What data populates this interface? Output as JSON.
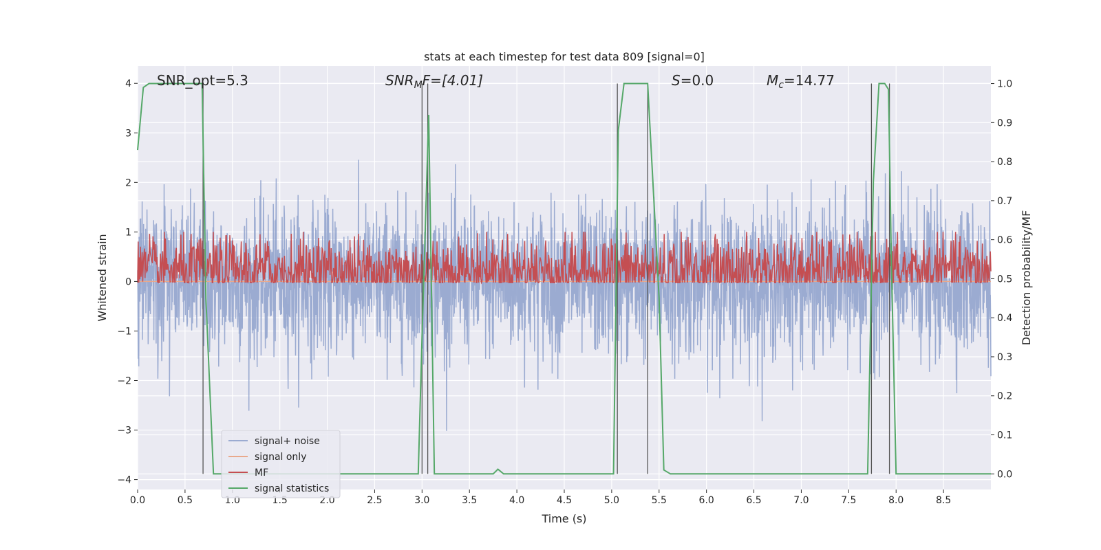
{
  "chart_data": {
    "type": "line",
    "title": "stats at each timestep for test data 809 [signal=0]",
    "xlabel": "Time (s)",
    "ylabel_left": "Whitened strain",
    "ylabel_right": "Detection probability/MF",
    "xlim": [
      0,
      9.0
    ],
    "ylim_left": [
      -4.2,
      4.35
    ],
    "ylim_right": [
      -0.04,
      1.045
    ],
    "x_ticks": [
      0.0,
      0.5,
      1.0,
      1.5,
      2.0,
      2.5,
      3.0,
      3.5,
      4.0,
      4.5,
      5.0,
      5.5,
      6.0,
      6.5,
      7.0,
      7.5,
      8.0,
      8.5
    ],
    "x_tick_labels": [
      "0.0",
      "0.5",
      "1.0",
      "1.5",
      "2.0",
      "2.5",
      "3.0",
      "3.5",
      "4.0",
      "4.5",
      "5.0",
      "5.5",
      "6.0",
      "6.5",
      "7.0",
      "7.5",
      "8.0",
      "8.5"
    ],
    "y_left_ticks": [
      4,
      3,
      2,
      1,
      0,
      -1,
      -2,
      -3,
      -4
    ],
    "y_left_tick_labels": [
      "4",
      "3",
      "2",
      "1",
      "0",
      "−1",
      "−2",
      "−3",
      "−4"
    ],
    "y_right_ticks": [
      1.0,
      0.9,
      0.8,
      0.7,
      0.6,
      0.5,
      0.4,
      0.3,
      0.2,
      0.1,
      0.0
    ],
    "y_right_tick_labels": [
      "1.0",
      "0.9",
      "0.8",
      "0.7",
      "0.6",
      "0.5",
      "0.4",
      "0.3",
      "0.2",
      "0.1",
      "0.0"
    ],
    "grid": true,
    "legend_position": "lower-left",
    "annotations": {
      "snr_opt": "SNR_opt=5.3",
      "snr_mf_main": "SNR",
      "snr_mf_sub": "M",
      "snr_mf_rest": "F=[4.01]",
      "s_main": "S",
      "s_rest": "=0.0",
      "mc_main": "M",
      "mc_sub": "c",
      "mc_rest": "=14.77"
    },
    "series": [
      {
        "name": "signal+ noise",
        "color": "#8da0cb",
        "axis": "left",
        "noise_std": 0.75,
        "points": 3000,
        "mean": 0.0
      },
      {
        "name": "signal only",
        "color": "#e9a98c",
        "axis": "left",
        "values_constant": 0.0
      },
      {
        "name": "MF",
        "color": "#c44e52",
        "axis": "right",
        "noise_std": 0.045,
        "mean": 0.52,
        "points": 1500
      },
      {
        "name": "signal statistics",
        "color": "#55a868",
        "axis": "right",
        "x": [
          0.0,
          0.06,
          0.12,
          0.68,
          0.72,
          0.8,
          2.96,
          3.0,
          3.07,
          3.13,
          3.75,
          3.8,
          3.86,
          5.02,
          5.07,
          5.13,
          5.38,
          5.5,
          5.55,
          5.62,
          7.7,
          7.76,
          7.82,
          7.88,
          7.92,
          7.95,
          8.0,
          9.0
        ],
        "y": [
          0.83,
          0.99,
          1.0,
          1.0,
          0.45,
          0.0,
          0.0,
          0.35,
          0.92,
          0.0,
          0.0,
          0.012,
          0.0,
          0.0,
          0.88,
          1.0,
          1.0,
          0.45,
          0.01,
          0.0,
          0.0,
          0.75,
          1.0,
          1.0,
          0.985,
          0.55,
          0.0,
          0.0
        ]
      },
      {
        "name": "detection markers",
        "color": "#555555",
        "axis": "right",
        "x": [
          0.69,
          3.0,
          3.06,
          5.06,
          5.38,
          7.74,
          7.93
        ],
        "y_range": [
          0.0,
          1.0
        ]
      }
    ]
  },
  "legend": {
    "items": [
      {
        "label": "signal+ noise",
        "color": "#8da0cb",
        "opacity": 0.85
      },
      {
        "label": "signal only",
        "color": "#e9a98c",
        "opacity": 1
      },
      {
        "label": "MF",
        "color": "#c44e52",
        "opacity": 1
      },
      {
        "label": "signal statistics",
        "color": "#55a868",
        "opacity": 1
      }
    ]
  },
  "colors": {
    "plot_background": "#eaeaf2",
    "grid": "#ffffff"
  }
}
